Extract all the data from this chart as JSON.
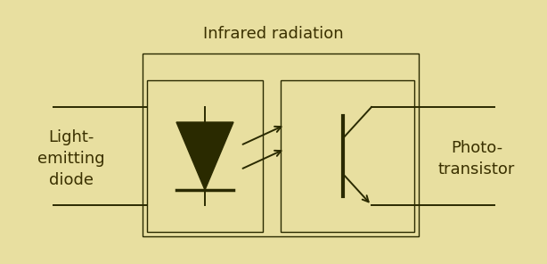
{
  "bg_color": "#e8dfa0",
  "text_color": "#3a3000",
  "title": "Infrared radiation",
  "label_led": "Light-\nemitting\ndiode",
  "label_phototransistor": "Photo-\ntransistor",
  "title_fontsize": 13,
  "label_fontsize": 13,
  "line_color": "#2a2a00",
  "line_width": 1.4
}
